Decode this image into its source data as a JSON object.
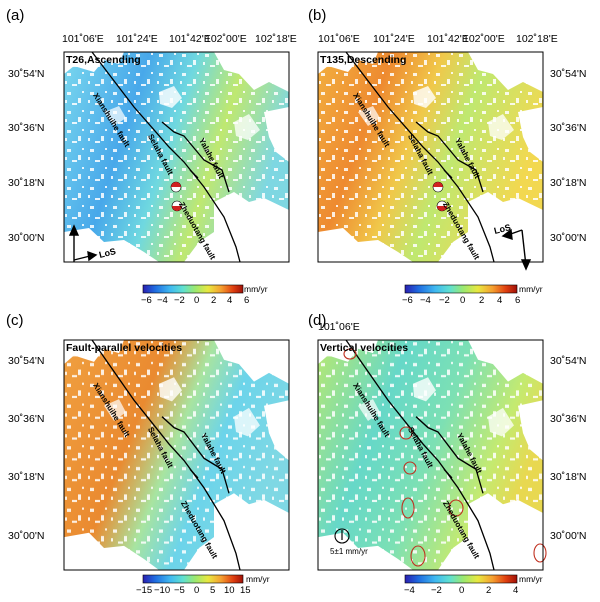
{
  "figure": {
    "top_lon_ticks": [
      "101˚06'E",
      "101˚24'E",
      "101˚42'E",
      "102˚00'E",
      "102˚18'E"
    ],
    "lat_ticks": [
      "30˚54'N",
      "30˚36'N",
      "30˚18'N",
      "30˚00'N"
    ],
    "faults": {
      "xianshuihe": "Xianshuihe fault",
      "selaha": "Selaha fault",
      "yalahe": "Yalahe fault",
      "zheduotang": "Zheduotang fault"
    },
    "los_label": "LoS",
    "panels": [
      {
        "label": "(a)",
        "title": "T26,Ascending",
        "colorbar": {
          "ticks": [
            "−6",
            "−4",
            "−2",
            "0",
            "2",
            "4",
            "6"
          ],
          "unit": "mm/yr"
        }
      },
      {
        "label": "(b)",
        "title": "T135,Descending",
        "colorbar": {
          "ticks": [
            "−6",
            "−4",
            "−2",
            "0",
            "2",
            "4",
            "6"
          ],
          "unit": "mm/yr"
        }
      },
      {
        "label": "(c)",
        "title": "Fault-parallel velocities",
        "colorbar": {
          "ticks": [
            "−15",
            "−10",
            "−5",
            "0",
            "5",
            "10",
            "15"
          ],
          "unit": "mm/yr"
        }
      },
      {
        "label": "(d)",
        "title": "Vertical velocities",
        "colorbar": {
          "ticks": [
            "−4",
            "−2",
            "0",
            "2",
            "4"
          ],
          "unit": "mm/yr"
        },
        "scale_label": "5±1 mm/yr"
      }
    ],
    "colors": {
      "cmap": [
        "#2a1fb0",
        "#1f6be0",
        "#3fb8f0",
        "#5fe0d0",
        "#9ae870",
        "#e8e840",
        "#f5a030",
        "#e04010",
        "#a01008"
      ],
      "fault_line": "#000000",
      "ellipse": "#c03020",
      "beachball_red": "#d02020"
    }
  }
}
